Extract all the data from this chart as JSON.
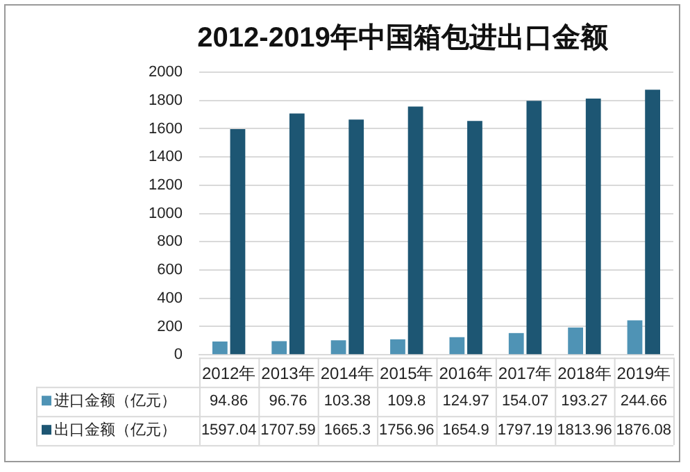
{
  "chart_data": {
    "type": "bar",
    "title": "2012-2019年中国箱包进出口金额",
    "categories": [
      "2012年",
      "2013年",
      "2014年",
      "2015年",
      "2016年",
      "2017年",
      "2018年",
      "2019年"
    ],
    "series": [
      {
        "name": "进口金额（亿元）",
        "color": "#4f93b5",
        "values": [
          94.86,
          96.76,
          103.38,
          109.8,
          124.97,
          154.07,
          193.27,
          244.66
        ]
      },
      {
        "name": "出口金额（亿元）",
        "color": "#1d5673",
        "values": [
          1597.04,
          1707.59,
          1665.3,
          1756.96,
          1654.9,
          1797.19,
          1813.96,
          1876.08
        ]
      }
    ],
    "ylim": [
      0,
      2000
    ],
    "yticks": [
      0,
      200,
      400,
      600,
      800,
      1000,
      1200,
      1400,
      1600,
      1800,
      2000
    ],
    "grid": "y",
    "legend": "bottom",
    "data_labels": true
  }
}
